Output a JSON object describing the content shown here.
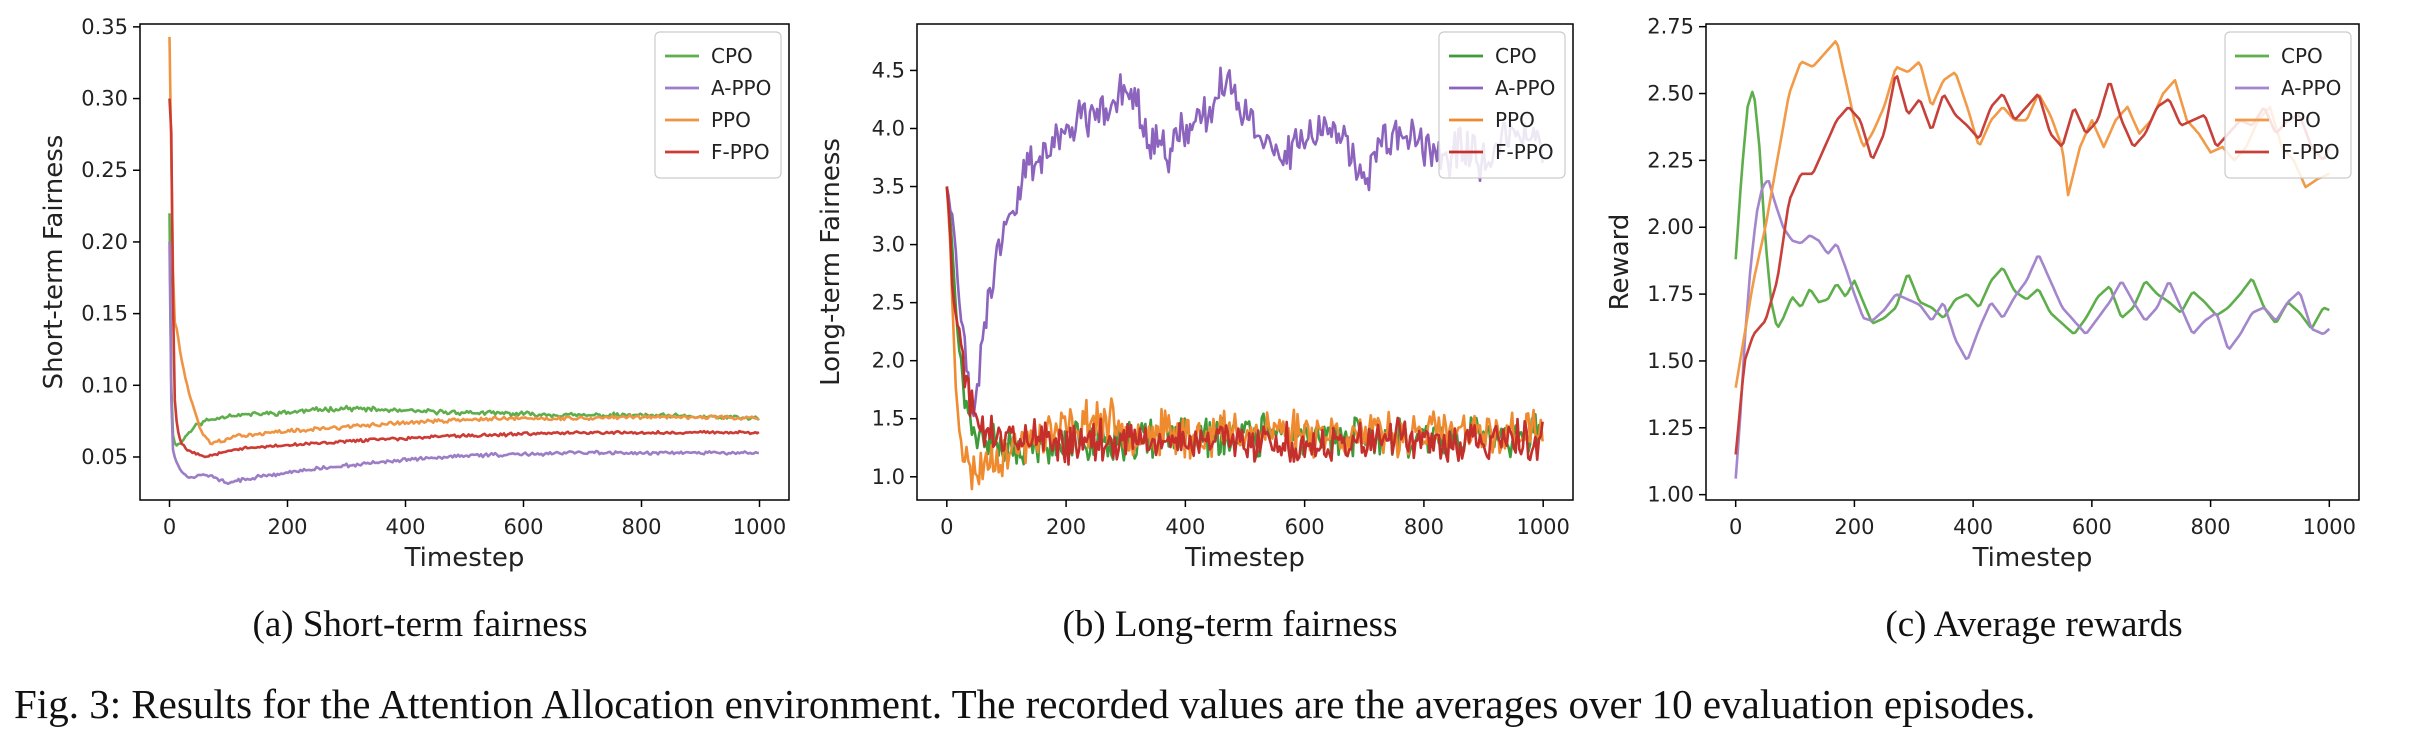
{
  "chart_data": [
    {
      "type": "line",
      "xlabel": "Timestep",
      "ylabel": "Short-term Fairness",
      "xlim": [
        -50,
        1050
      ],
      "ylim": [
        0.02,
        0.352
      ],
      "xticks": [
        0,
        200,
        400,
        600,
        800,
        1000
      ],
      "yticks": [
        0.05,
        0.1,
        0.15,
        0.2,
        0.25,
        0.3,
        0.35
      ],
      "ytick_labels": [
        "0.05",
        "0.10",
        "0.15",
        "0.20",
        "0.25",
        "0.30",
        "0.35"
      ],
      "legend_position": "top-right",
      "grid": false,
      "series": [
        {
          "name": "CPO",
          "color": "#5fae4c",
          "noise": 0.0012,
          "seed": 11,
          "x": [
            0,
            3,
            6,
            10,
            20,
            30,
            45,
            60,
            80,
            100,
            150,
            200,
            250,
            300,
            400,
            500,
            600,
            700,
            800,
            900,
            1000
          ],
          "y": [
            0.22,
            0.1,
            0.065,
            0.058,
            0.06,
            0.066,
            0.072,
            0.075,
            0.077,
            0.079,
            0.08,
            0.081,
            0.083,
            0.084,
            0.082,
            0.081,
            0.08,
            0.079,
            0.079,
            0.078,
            0.077
          ]
        },
        {
          "name": "A-PPO",
          "color": "#9d7dc6",
          "noise": 0.0009,
          "seed": 12,
          "x": [
            0,
            3,
            6,
            10,
            20,
            30,
            45,
            60,
            80,
            100,
            150,
            200,
            250,
            300,
            400,
            500,
            600,
            700,
            800,
            900,
            1000
          ],
          "y": [
            0.2,
            0.09,
            0.055,
            0.048,
            0.04,
            0.036,
            0.036,
            0.038,
            0.035,
            0.032,
            0.036,
            0.039,
            0.042,
            0.044,
            0.048,
            0.051,
            0.052,
            0.053,
            0.053,
            0.053,
            0.053
          ]
        },
        {
          "name": "PPO",
          "color": "#ef9443",
          "noise": 0.001,
          "seed": 13,
          "x": [
            0,
            2,
            4,
            6,
            8,
            12,
            16,
            20,
            30,
            40,
            55,
            70,
            90,
            120,
            200,
            300,
            400,
            500,
            600,
            700,
            800,
            900,
            1000
          ],
          "y": [
            0.343,
            0.3,
            0.22,
            0.18,
            0.145,
            0.14,
            0.13,
            0.118,
            0.1,
            0.085,
            0.066,
            0.06,
            0.061,
            0.065,
            0.068,
            0.071,
            0.074,
            0.076,
            0.077,
            0.077,
            0.078,
            0.078,
            0.077
          ]
        },
        {
          "name": "F-PPO",
          "color": "#cc3b34",
          "noise": 0.0008,
          "seed": 14,
          "x": [
            0,
            1,
            2,
            3,
            4,
            5,
            7,
            9,
            12,
            16,
            20,
            30,
            45,
            60,
            80,
            100,
            150,
            200,
            300,
            400,
            500,
            600,
            700,
            800,
            900,
            1000
          ],
          "y": [
            0.3,
            0.338,
            0.24,
            0.276,
            0.22,
            0.2,
            0.12,
            0.09,
            0.075,
            0.065,
            0.06,
            0.055,
            0.052,
            0.05,
            0.052,
            0.055,
            0.057,
            0.058,
            0.061,
            0.063,
            0.065,
            0.066,
            0.067,
            0.067,
            0.067,
            0.067
          ]
        }
      ]
    },
    {
      "type": "line",
      "xlabel": "Timestep",
      "ylabel": "Long-term Fairness",
      "xlim": [
        -50,
        1050
      ],
      "ylim": [
        0.8,
        4.9
      ],
      "xticks": [
        0,
        200,
        400,
        600,
        800,
        1000
      ],
      "yticks": [
        1.0,
        1.5,
        2.0,
        2.5,
        3.0,
        3.5,
        4.0,
        4.5
      ],
      "ytick_labels": [
        "1.0",
        "1.5",
        "2.0",
        "2.5",
        "3.0",
        "3.5",
        "4.0",
        "4.5"
      ],
      "legend_position": "top-right",
      "grid": false,
      "series": [
        {
          "name": "CPO",
          "color": "#3f9a3a",
          "noise": 0.13,
          "seed": 21,
          "x": [
            0,
            5,
            10,
            15,
            20,
            30,
            40,
            60,
            100,
            200,
            400,
            600,
            800,
            1000
          ],
          "y": [
            3.5,
            3.3,
            2.9,
            2.5,
            2.1,
            1.7,
            1.45,
            1.3,
            1.25,
            1.3,
            1.35,
            1.35,
            1.35,
            1.35
          ]
        },
        {
          "name": "A-PPO",
          "color": "#8c64bd",
          "noise": 0.14,
          "seed": 22,
          "x": [
            0,
            10,
            20,
            30,
            40,
            50,
            60,
            70,
            80,
            100,
            120,
            150,
            180,
            200,
            230,
            260,
            290,
            310,
            340,
            370,
            400,
            430,
            460,
            490,
            520,
            560,
            600,
            640,
            680,
            700,
            730,
            760,
            800,
            830,
            860,
            900,
            950,
            1000
          ],
          "y": [
            3.5,
            3.2,
            2.6,
            2.1,
            1.6,
            1.6,
            2.2,
            2.5,
            2.8,
            3.2,
            3.5,
            3.7,
            3.9,
            4.0,
            4.1,
            4.2,
            4.3,
            4.35,
            3.95,
            3.8,
            4.0,
            4.05,
            4.4,
            4.2,
            4.0,
            3.8,
            3.9,
            4.0,
            3.8,
            3.5,
            3.9,
            4.0,
            3.8,
            3.7,
            3.9,
            3.7,
            3.9,
            3.9
          ]
        },
        {
          "name": "PPO",
          "color": "#ef8a2f",
          "noise": 0.15,
          "seed": 23,
          "x": [
            0,
            5,
            10,
            15,
            20,
            25,
            30,
            40,
            50,
            60,
            80,
            100,
            150,
            200,
            250,
            300,
            400,
            500,
            600,
            700,
            800,
            900,
            1000
          ],
          "y": [
            3.5,
            3.1,
            2.4,
            1.8,
            1.5,
            1.3,
            1.15,
            1.05,
            1.05,
            1.1,
            1.2,
            1.2,
            1.35,
            1.4,
            1.5,
            1.4,
            1.35,
            1.4,
            1.4,
            1.35,
            1.4,
            1.35,
            1.4
          ]
        },
        {
          "name": "F-PPO",
          "color": "#c42f2b",
          "noise": 0.13,
          "seed": 24,
          "x": [
            0,
            5,
            10,
            15,
            20,
            25,
            30,
            40,
            50,
            60,
            80,
            100,
            200,
            400,
            600,
            800,
            1000
          ],
          "y": [
            3.5,
            3.2,
            2.5,
            2.4,
            2.3,
            2.1,
            1.9,
            1.6,
            1.45,
            1.45,
            1.4,
            1.35,
            1.3,
            1.3,
            1.3,
            1.3,
            1.3
          ]
        }
      ]
    },
    {
      "type": "line",
      "xlabel": "Timestep",
      "ylabel": "Reward",
      "xlim": [
        -50,
        1050
      ],
      "ylim": [
        0.98,
        2.76
      ],
      "xticks": [
        0,
        200,
        400,
        600,
        800,
        1000
      ],
      "yticks": [
        1.0,
        1.25,
        1.5,
        1.75,
        2.0,
        2.25,
        2.5,
        2.75
      ],
      "ytick_labels": [
        "1.00",
        "1.25",
        "1.50",
        "1.75",
        "2.00",
        "2.25",
        "2.50",
        "2.75"
      ],
      "legend_position": "top-right",
      "grid": false,
      "series": [
        {
          "name": "CPO",
          "color": "#5fae4c",
          "x": [
            0,
            10,
            20,
            30,
            40,
            50,
            60,
            70,
            80,
            95,
            110,
            125,
            140,
            155,
            170,
            185,
            200,
            215,
            230,
            250,
            270,
            290,
            310,
            330,
            350,
            370,
            390,
            410,
            430,
            450,
            470,
            490,
            510,
            530,
            550,
            570,
            590,
            610,
            630,
            650,
            670,
            690,
            710,
            730,
            750,
            770,
            790,
            810,
            830,
            850,
            870,
            890,
            910,
            930,
            950,
            970,
            990,
            1000
          ],
          "y": [
            1.88,
            2.2,
            2.45,
            2.52,
            2.3,
            1.95,
            1.72,
            1.62,
            1.66,
            1.74,
            1.7,
            1.77,
            1.72,
            1.73,
            1.79,
            1.74,
            1.8,
            1.72,
            1.64,
            1.66,
            1.7,
            1.83,
            1.72,
            1.7,
            1.66,
            1.73,
            1.75,
            1.7,
            1.8,
            1.85,
            1.76,
            1.73,
            1.77,
            1.68,
            1.64,
            1.6,
            1.66,
            1.74,
            1.78,
            1.66,
            1.7,
            1.8,
            1.75,
            1.72,
            1.68,
            1.76,
            1.72,
            1.67,
            1.7,
            1.75,
            1.81,
            1.7,
            1.64,
            1.72,
            1.68,
            1.62,
            1.7,
            1.69
          ]
        },
        {
          "name": "A-PPO",
          "color": "#a486cc",
          "x": [
            0,
            8,
            16,
            25,
            35,
            45,
            55,
            65,
            80,
            95,
            110,
            125,
            140,
            155,
            170,
            185,
            200,
            215,
            230,
            250,
            270,
            290,
            310,
            330,
            350,
            370,
            390,
            410,
            430,
            450,
            470,
            490,
            510,
            530,
            550,
            570,
            590,
            610,
            630,
            650,
            670,
            690,
            710,
            730,
            750,
            770,
            790,
            810,
            830,
            850,
            870,
            890,
            910,
            930,
            950,
            970,
            990,
            1000
          ],
          "y": [
            1.06,
            1.3,
            1.6,
            1.85,
            2.05,
            2.15,
            2.18,
            2.1,
            2.0,
            1.95,
            1.94,
            1.97,
            1.95,
            1.9,
            1.94,
            1.85,
            1.75,
            1.66,
            1.65,
            1.69,
            1.75,
            1.73,
            1.71,
            1.65,
            1.72,
            1.58,
            1.5,
            1.62,
            1.72,
            1.66,
            1.74,
            1.8,
            1.9,
            1.8,
            1.7,
            1.65,
            1.6,
            1.66,
            1.72,
            1.8,
            1.72,
            1.65,
            1.7,
            1.8,
            1.7,
            1.6,
            1.65,
            1.68,
            1.54,
            1.6,
            1.68,
            1.7,
            1.65,
            1.72,
            1.76,
            1.62,
            1.6,
            1.62
          ]
        },
        {
          "name": "PPO",
          "color": "#f19a48",
          "x": [
            0,
            15,
            30,
            50,
            70,
            90,
            110,
            130,
            150,
            170,
            185,
            200,
            215,
            230,
            250,
            270,
            290,
            310,
            330,
            350,
            370,
            390,
            410,
            430,
            450,
            470,
            490,
            510,
            530,
            550,
            560,
            580,
            600,
            620,
            640,
            660,
            680,
            700,
            720,
            740,
            760,
            780,
            800,
            820,
            840,
            860,
            880,
            900,
            920,
            940,
            960,
            980,
            1000
          ],
          "y": [
            1.4,
            1.6,
            1.8,
            2.0,
            2.25,
            2.5,
            2.62,
            2.6,
            2.65,
            2.7,
            2.55,
            2.4,
            2.3,
            2.35,
            2.45,
            2.6,
            2.58,
            2.62,
            2.45,
            2.55,
            2.58,
            2.45,
            2.3,
            2.4,
            2.45,
            2.4,
            2.4,
            2.5,
            2.42,
            2.3,
            2.12,
            2.3,
            2.4,
            2.3,
            2.4,
            2.45,
            2.35,
            2.4,
            2.5,
            2.55,
            2.4,
            2.35,
            2.28,
            2.3,
            2.25,
            2.3,
            2.4,
            2.45,
            2.3,
            2.25,
            2.15,
            2.18,
            2.2
          ]
        },
        {
          "name": "F-PPO",
          "color": "#c7413a",
          "x": [
            0,
            15,
            30,
            50,
            70,
            90,
            110,
            130,
            150,
            170,
            190,
            210,
            230,
            250,
            270,
            290,
            310,
            330,
            350,
            370,
            390,
            410,
            430,
            450,
            470,
            490,
            510,
            530,
            550,
            570,
            590,
            610,
            630,
            650,
            670,
            690,
            710,
            730,
            750,
            770,
            790,
            810,
            830,
            850,
            870,
            890,
            910,
            930,
            950,
            970,
            990,
            1000
          ],
          "y": [
            1.15,
            1.5,
            1.6,
            1.65,
            1.8,
            2.1,
            2.2,
            2.2,
            2.3,
            2.4,
            2.45,
            2.4,
            2.25,
            2.35,
            2.58,
            2.42,
            2.48,
            2.36,
            2.5,
            2.42,
            2.38,
            2.33,
            2.45,
            2.5,
            2.4,
            2.45,
            2.5,
            2.35,
            2.3,
            2.45,
            2.35,
            2.4,
            2.55,
            2.4,
            2.3,
            2.35,
            2.45,
            2.48,
            2.38,
            2.4,
            2.42,
            2.3,
            2.35,
            2.4,
            2.38,
            2.45,
            2.35,
            2.4,
            2.42,
            2.3,
            2.25,
            2.3
          ]
        }
      ]
    }
  ],
  "subcaptions": [
    "(a) Short-term fairness",
    "(b) Long-term fairness",
    "(c) Average rewards"
  ],
  "figure_caption": "Fig. 3: Results for the Attention Allocation environment. The recorded values are the averages over 10 evaluation episodes."
}
